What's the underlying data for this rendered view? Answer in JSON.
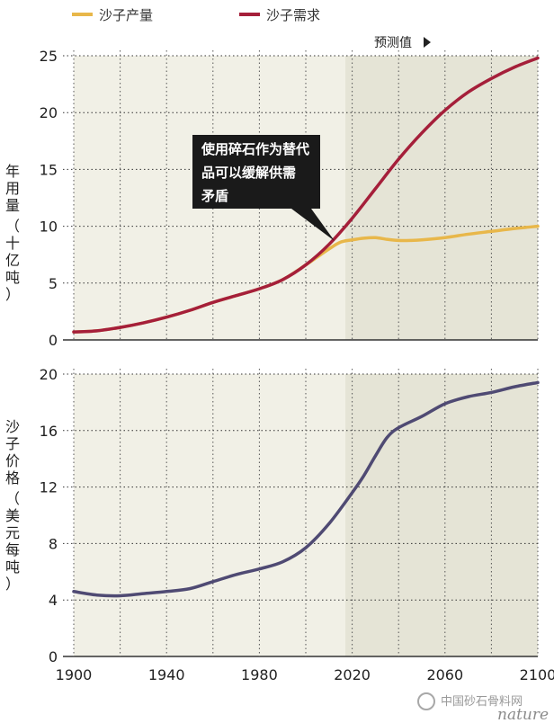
{
  "legend": {
    "production": "沙子产量",
    "demand": "沙子需求"
  },
  "projection_label": "预测值",
  "callout": [
    "使用碎石作为替代",
    "品可以缓解供需",
    "矛盾"
  ],
  "watermark": {
    "brand": "中国砂石骨料网",
    "source": "nature"
  },
  "colors": {
    "production": "#e8b74a",
    "demand": "#a51f3a",
    "price": "#4f4a73",
    "history_bg": "#f1f0e6",
    "projection_bg": "#e5e4d6",
    "callout_bg": "#1a1a1a"
  },
  "chart_data": [
    {
      "type": "line",
      "ylabel_lines": [
        "年用量",
        "（十亿吨）"
      ],
      "xlim": [
        1900,
        2100
      ],
      "ylim": [
        0,
        25
      ],
      "yticks": [
        0,
        5,
        10,
        15,
        20,
        25
      ],
      "projection_start": 2017,
      "grid": true,
      "legend": "top-left",
      "series": [
        {
          "name": "沙子产量",
          "color_key": "production",
          "x": [
            1900,
            1910,
            1920,
            1930,
            1940,
            1950,
            1960,
            1970,
            1980,
            1990,
            2000,
            2005,
            2010,
            2015,
            2020,
            2025,
            2030,
            2035,
            2040,
            2045,
            2050,
            2060,
            2070,
            2080,
            2090,
            2100
          ],
          "y": [
            0.7,
            0.8,
            1.1,
            1.5,
            2.0,
            2.6,
            3.3,
            3.9,
            4.5,
            5.3,
            6.6,
            7.3,
            8.0,
            8.6,
            8.8,
            8.95,
            9.0,
            8.85,
            8.75,
            8.75,
            8.8,
            9.0,
            9.3,
            9.55,
            9.8,
            10.0
          ]
        },
        {
          "name": "沙子需求",
          "color_key": "demand",
          "x": [
            1900,
            1910,
            1920,
            1930,
            1940,
            1950,
            1960,
            1970,
            1980,
            1990,
            2000,
            2010,
            2020,
            2030,
            2040,
            2050,
            2060,
            2070,
            2080,
            2090,
            2100
          ],
          "y": [
            0.7,
            0.8,
            1.1,
            1.5,
            2.0,
            2.6,
            3.3,
            3.9,
            4.5,
            5.3,
            6.6,
            8.4,
            10.7,
            13.3,
            15.9,
            18.2,
            20.2,
            21.8,
            23.0,
            24.0,
            24.8
          ]
        }
      ]
    },
    {
      "type": "line",
      "ylabel_lines": [
        "沙子价格",
        "（美元每吨）"
      ],
      "xlim": [
        1900,
        2100
      ],
      "ylim": [
        0,
        20
      ],
      "yticks": [
        0,
        4,
        8,
        12,
        16,
        20
      ],
      "xticks": [
        1900,
        1940,
        1980,
        2020,
        2060,
        2100
      ],
      "projection_start": 2017,
      "grid": true,
      "series": [
        {
          "color_key": "price",
          "x": [
            1900,
            1910,
            1920,
            1930,
            1940,
            1950,
            1960,
            1970,
            1980,
            1990,
            2000,
            2010,
            2020,
            2025,
            2030,
            2035,
            2040,
            2050,
            2060,
            2070,
            2080,
            2090,
            2100
          ],
          "y": [
            4.6,
            4.35,
            4.3,
            4.45,
            4.6,
            4.8,
            5.3,
            5.8,
            6.2,
            6.7,
            7.7,
            9.4,
            11.6,
            12.8,
            14.2,
            15.5,
            16.2,
            17.0,
            17.9,
            18.4,
            18.7,
            19.1,
            19.4
          ]
        }
      ]
    }
  ]
}
